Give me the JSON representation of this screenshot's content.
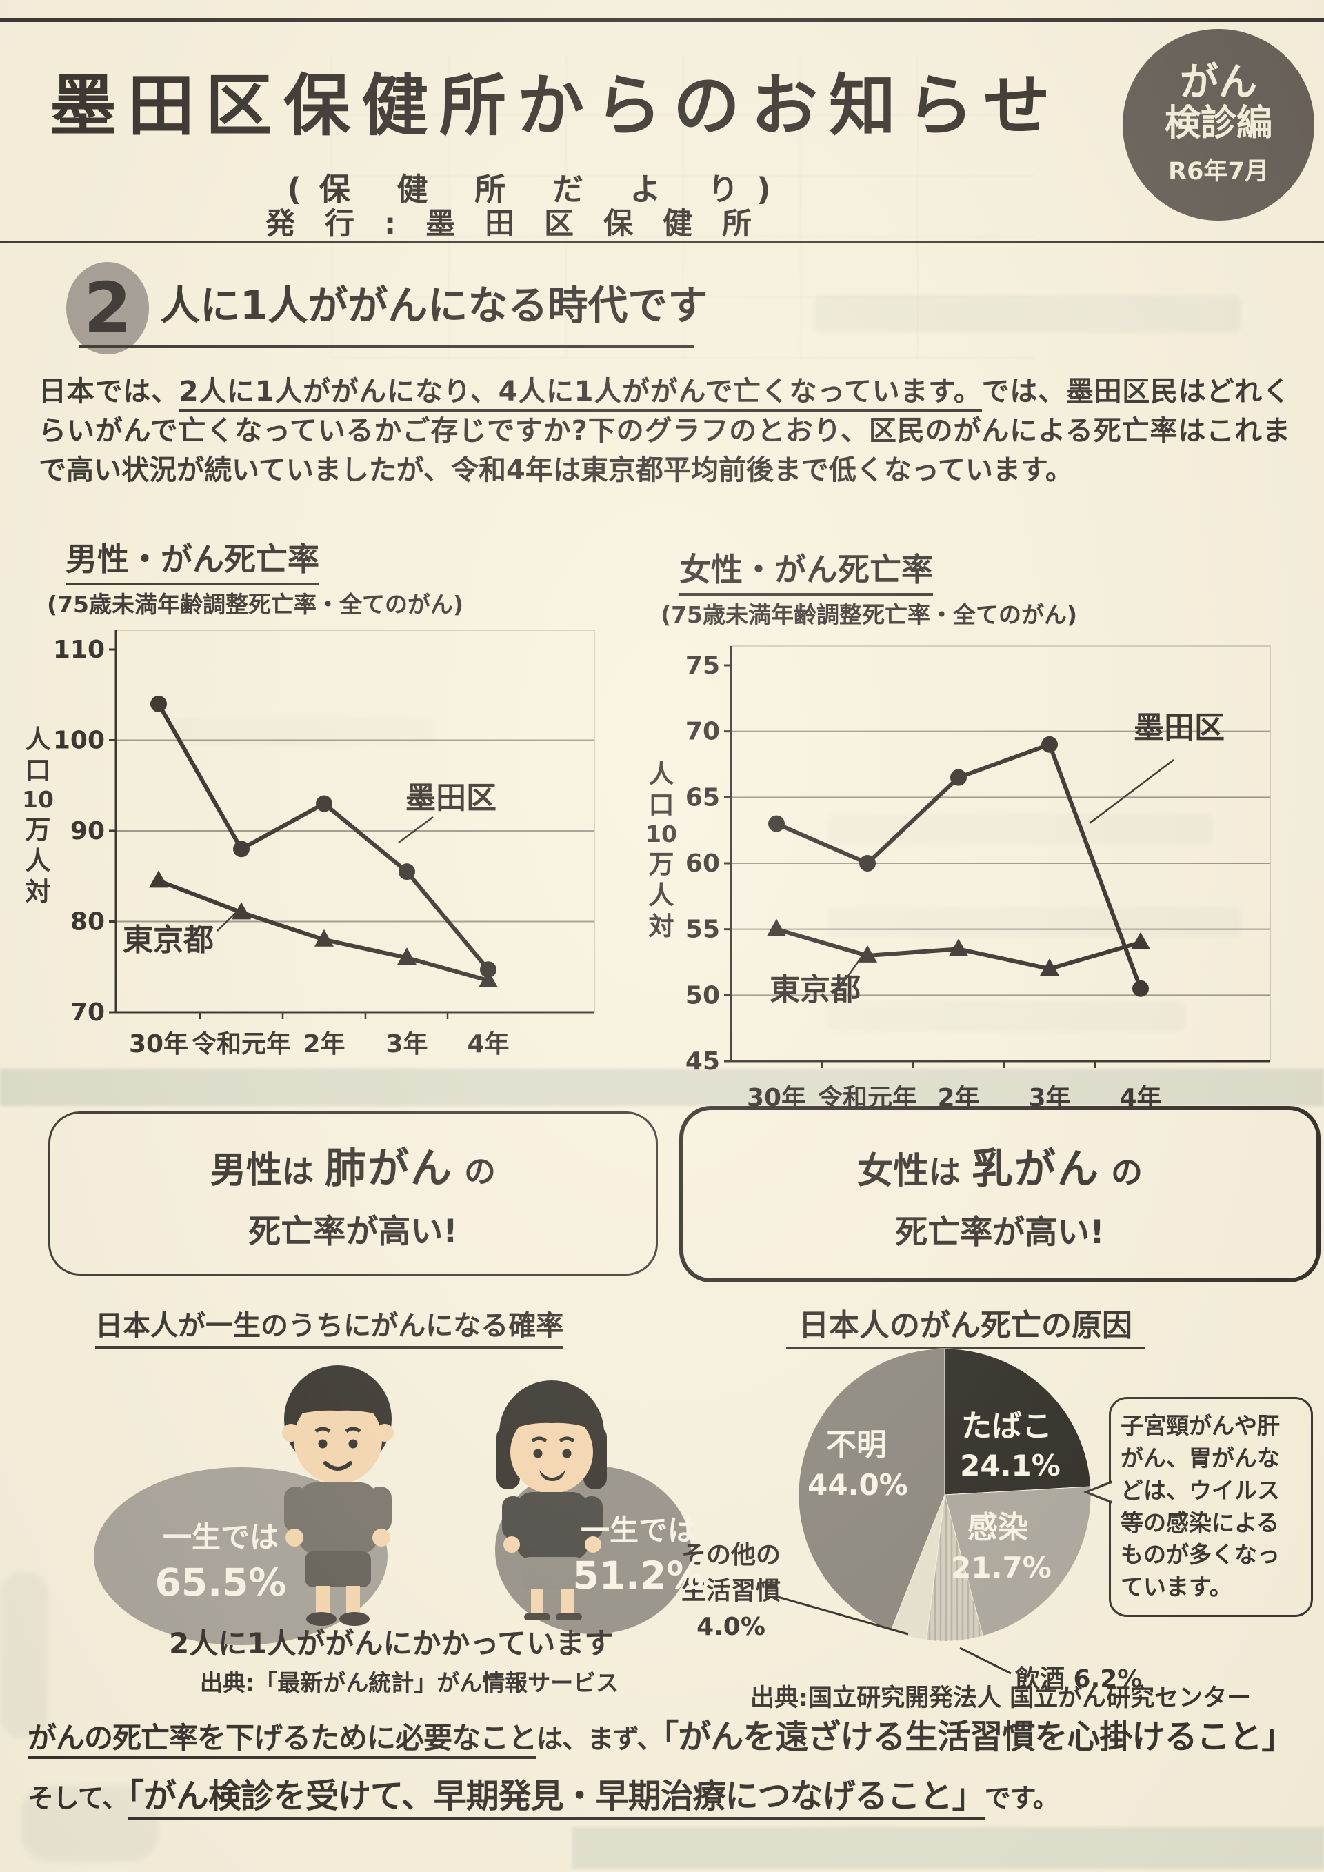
{
  "header": {
    "title": "墨田区保健所からのお知らせ",
    "subtitle": "(保 健 所 だ よ り)",
    "publisher": "発 行 : 墨 田 区 保 健 所",
    "badge": {
      "line1": "がん",
      "line2": "検診編",
      "line3": "R6年7月",
      "bg_color": "#57514b",
      "fg_color": "#f6f0e0"
    }
  },
  "section2": {
    "number": "2",
    "heading": "人に1人ががんになる時代です",
    "p_start": "日本では、",
    "p_underline": "2人に1人ががんになり、4人に1人ががんで亡くなっています。",
    "p_mid": "では、墨田区民はどれくらいがんで亡くなっているかご存じですか?下のグラフのとおり、",
    "p_bold": "区民のがんによる死亡率はこれまで高い状況が続いていましたが、令和4年は東京都平均前後まで低くなっています。"
  },
  "chart_data": [
    {
      "type": "line",
      "id": "male",
      "title": "男性・がん死亡率",
      "subtitle": "(75歳未満年齢調整死亡率・全てのがん)",
      "ylabel": "人口10万人対",
      "categories": [
        "30年",
        "令和元年",
        "2年",
        "3年",
        "4年"
      ],
      "ylim": [
        70,
        110
      ],
      "yticks": [
        110,
        100,
        90,
        80,
        70
      ],
      "grid": true,
      "legend_position": "inline-annotations",
      "series": [
        {
          "name": "墨田区",
          "marker": "circle",
          "values": [
            104,
            88,
            93,
            85.5,
            74.7
          ]
        },
        {
          "name": "東京都",
          "marker": "triangle",
          "values": [
            84.5,
            81,
            78,
            76,
            73.5
          ]
        }
      ]
    },
    {
      "type": "line",
      "id": "female",
      "title": "女性・がん死亡率",
      "subtitle": "(75歳未満年齢調整死亡率・全てのがん)",
      "ylabel": "人口10万人対",
      "categories": [
        "30年",
        "令和元年",
        "2年",
        "3年",
        "4年"
      ],
      "ylim": [
        45,
        75
      ],
      "yticks": [
        75,
        70,
        65,
        60,
        55,
        50,
        45
      ],
      "grid": true,
      "legend_position": "inline-annotations",
      "series": [
        {
          "name": "墨田区",
          "marker": "circle",
          "values": [
            63,
            60,
            66.5,
            69,
            50.5
          ]
        },
        {
          "name": "東京都",
          "marker": "triangle",
          "values": [
            55,
            53,
            53.5,
            52,
            54
          ]
        }
      ]
    },
    {
      "type": "pie",
      "id": "causes",
      "title": "日本人のがん死亡の原因",
      "slices": [
        {
          "label": "たばこ",
          "value": 24.1,
          "color": "#191613"
        },
        {
          "label": "感染",
          "value": 21.7,
          "color": "#a6a198"
        },
        {
          "label": "飲酒",
          "value": 6.2,
          "color": "#d2cec0"
        },
        {
          "label": "その他の生活習慣",
          "value": 4.0,
          "color": "#e7e2d1"
        },
        {
          "label": "不明",
          "value": 44.0,
          "color": "#827d75"
        }
      ],
      "note": "子宮頸がんや肝がん、胃がんなどは、ウイルス等の感染によるものが多くなっています。",
      "source": "出典:国立研究開発法人 国立がん研究センター"
    }
  ],
  "callouts": {
    "male": {
      "subject": "男性",
      "pre": "は",
      "cancer": "肺がん",
      "post": "の",
      "line2": "死亡率が高い!"
    },
    "female": {
      "subject": "女性",
      "pre": "は",
      "cancer": "乳がん",
      "post": "の",
      "line2": "死亡率が高い!"
    }
  },
  "probability": {
    "heading": "日本人が一生のうちにがんになる確率",
    "male_bubble": {
      "label": "一生では",
      "value": "65.5%"
    },
    "female_bubble": {
      "label": "一生では",
      "value": "51.2%"
    },
    "caption": "2人に1人ががんにかかっています",
    "source": "出典:「最新がん統計」がん情報サービス"
  },
  "footer": {
    "u1": "がんの死亡率を下げるために必要なこと",
    "m1": "は、まず、",
    "b1": "「がんを遠ざける生活習慣を心掛けること」",
    "p2": "そして、",
    "b2": "「がん検診を受けて、早期発見・早期治療につなげること」",
    "e2": "です。"
  }
}
